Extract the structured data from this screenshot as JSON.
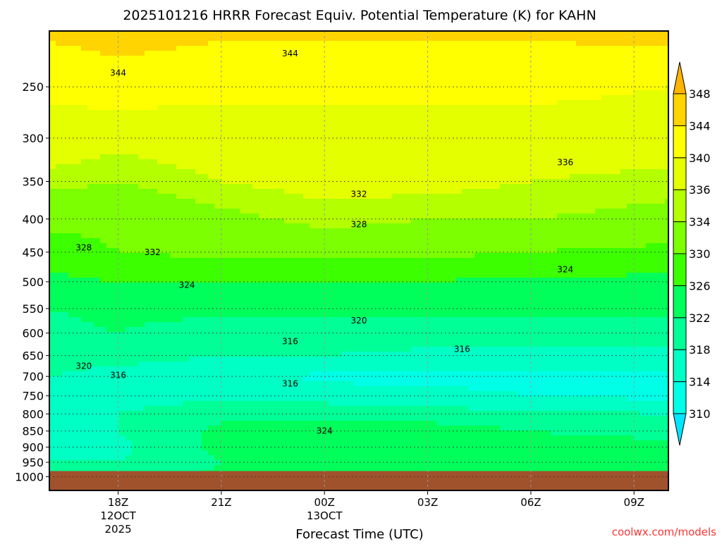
{
  "chart_data": {
    "type": "heatmap",
    "title": "2025101216 HRRR Forecast Equiv. Potential Temperature (K) for KAHN",
    "xlabel": "Forecast Time (UTC)",
    "ylabel": "",
    "credit": "coolwx.com/models",
    "x_range_hours": [
      0,
      18
    ],
    "y_range_hPa": [
      205,
      1050
    ],
    "y_scale": "log",
    "x_ticks": [
      {
        "hour": 2,
        "lines": [
          "18Z",
          "12OCT",
          "2025"
        ]
      },
      {
        "hour": 5,
        "lines": [
          "21Z"
        ]
      },
      {
        "hour": 8,
        "lines": [
          "00Z",
          "13OCT"
        ]
      },
      {
        "hour": 11,
        "lines": [
          "03Z"
        ]
      },
      {
        "hour": 14,
        "lines": [
          "06Z"
        ]
      },
      {
        "hour": 17,
        "lines": [
          "09Z"
        ]
      }
    ],
    "y_ticks": [
      250,
      300,
      350,
      400,
      450,
      500,
      550,
      600,
      650,
      700,
      750,
      800,
      850,
      900,
      950,
      1000
    ],
    "grid": true,
    "grid_hours": [
      0,
      2,
      5,
      8,
      11,
      14,
      18
    ],
    "grid_pressures": [
      200,
      250,
      300,
      350,
      400,
      450,
      500,
      550,
      600,
      650,
      700,
      750,
      800,
      850,
      900,
      950,
      1000
    ],
    "values": [
      [
        345,
        346,
        345,
        345,
        345,
        345,
        346
      ],
      [
        341,
        342,
        341,
        341,
        341,
        341,
        340
      ],
      [
        338,
        337,
        338,
        338,
        338,
        338,
        338
      ],
      [
        335,
        334,
        336,
        337,
        337,
        336,
        335
      ],
      [
        331,
        331,
        333,
        335,
        334,
        334,
        333
      ],
      [
        328,
        330,
        331,
        331,
        331,
        330,
        329
      ],
      [
        325,
        326,
        326,
        326,
        326,
        325,
        325
      ],
      [
        322,
        323,
        323,
        323,
        323,
        323,
        323
      ],
      [
        321,
        322,
        320,
        320,
        320,
        320,
        319
      ],
      [
        319,
        319,
        318,
        318,
        317,
        317,
        317
      ],
      [
        318,
        317,
        316,
        313,
        313,
        313,
        313
      ],
      [
        316,
        316,
        317,
        316,
        315,
        314,
        313
      ],
      [
        317,
        318,
        321,
        321,
        320,
        319,
        318
      ],
      [
        317,
        318,
        323,
        324,
        324,
        322,
        321
      ],
      [
        316,
        317,
        323,
        323,
        323,
        323,
        323
      ],
      [
        318,
        318,
        322,
        323,
        323,
        322,
        323
      ],
      [
        320,
        320,
        323,
        323,
        323,
        323,
        323
      ]
    ],
    "ground_pressure_hPa": 980,
    "colorbar": {
      "levels": [
        310,
        314,
        318,
        322,
        326,
        330,
        334,
        336,
        340,
        344,
        348
      ],
      "colors": [
        "#00e6ff",
        "#00ffe6",
        "#00ffc4",
        "#00ff96",
        "#00ff5a",
        "#3cff00",
        "#7cff00",
        "#b4ff00",
        "#e4ff00",
        "#ffff00",
        "#ffd400",
        "#ffb400"
      ],
      "labels": [
        "310",
        "314",
        "318",
        "322",
        "326",
        "330",
        "334",
        "336",
        "340",
        "344",
        "348"
      ]
    },
    "contour_labels": [
      {
        "text": "344",
        "hour": 2.0,
        "p": 238
      },
      {
        "text": "344",
        "hour": 7.0,
        "p": 222
      },
      {
        "text": "336",
        "hour": 15.0,
        "p": 327
      },
      {
        "text": "332",
        "hour": 9.0,
        "p": 366
      },
      {
        "text": "328",
        "hour": 9.0,
        "p": 408
      },
      {
        "text": "328",
        "hour": 1.0,
        "p": 443
      },
      {
        "text": "332",
        "hour": 3.0,
        "p": 450
      },
      {
        "text": "324",
        "hour": 4.0,
        "p": 506
      },
      {
        "text": "324",
        "hour": 15.0,
        "p": 479
      },
      {
        "text": "320",
        "hour": 9.0,
        "p": 574
      },
      {
        "text": "316",
        "hour": 7.0,
        "p": 618
      },
      {
        "text": "316",
        "hour": 12.0,
        "p": 635
      },
      {
        "text": "320",
        "hour": 1.0,
        "p": 675
      },
      {
        "text": "316",
        "hour": 2.0,
        "p": 697
      },
      {
        "text": "316",
        "hour": 7.0,
        "p": 718
      },
      {
        "text": "324",
        "hour": 8.0,
        "p": 850
      }
    ]
  }
}
